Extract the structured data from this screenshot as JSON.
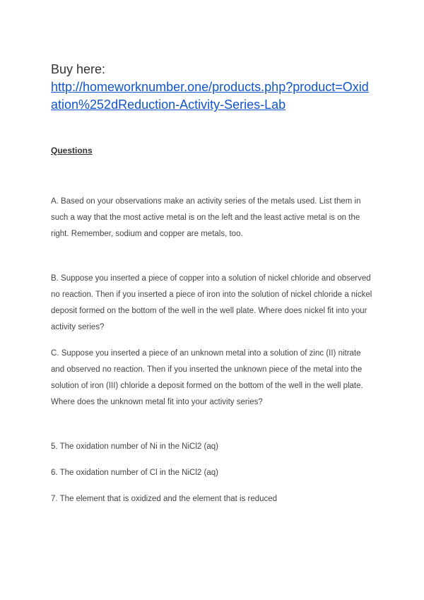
{
  "header": {
    "prefix": "Buy here:",
    "link_text": "http://homeworknumber.one/products.php?product=Oxidation%252dReduction-Activity-Series-Lab"
  },
  "section_heading": "Questions",
  "paragraphs": {
    "a": "A.  Based on your observations make an activity series of the metals used. List them in such a way that the most active metal is on the left and the least active metal is on the right. Remember, sodium and copper are metals, too.",
    "b": "B.   Suppose you inserted a piece of copper into a solution of nickel chloride and observed no reaction. Then if you inserted a piece of iron into the solution of nickel chloride a nickel deposit formed on the bottom of the well in the well plate. Where does nickel fit into your activity series?",
    "c": "C.   Suppose you inserted a piece of an unknown metal into a solution of zinc (II) nitrate and observed no reaction. Then if you inserted the unknown piece of the metal into the solution of iron (III) chloride a deposit formed on the bottom of the well in the well plate. Where does the unknown metal fit into your activity series?"
  },
  "items": {
    "q5": "5.   The oxidation number of Ni in the NiCl2 (aq)",
    "q6": "6.   The oxidation number of Cl in the NiCl2 (aq)",
    "q7": "7.   The element that is oxidized and the element that is reduced"
  }
}
